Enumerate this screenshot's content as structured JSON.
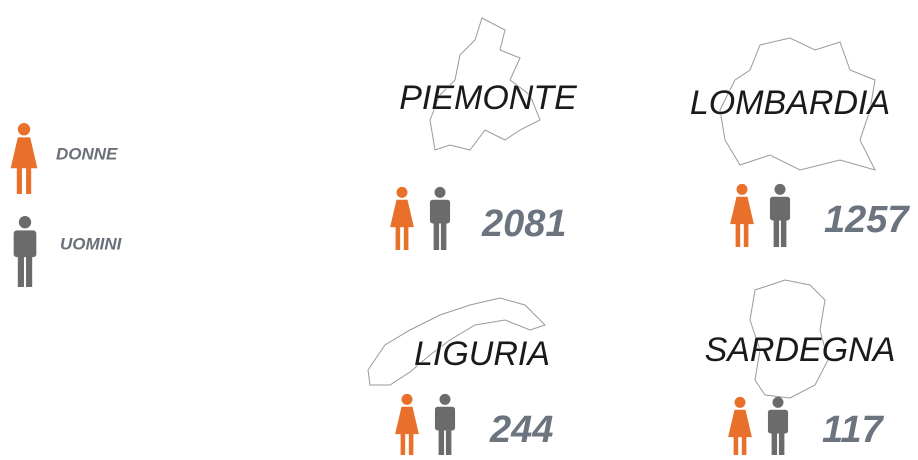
{
  "legend": [
    {
      "label": "DONNE"
    },
    {
      "label": "UOMINI"
    }
  ],
  "regions": [
    {
      "name": "PIEMONTE",
      "value": 2081
    },
    {
      "name": "LOMBARDIA",
      "value": 1257
    },
    {
      "name": "LIGURIA",
      "value": 244
    },
    {
      "name": "SARDEGNA",
      "value": 117
    }
  ]
}
